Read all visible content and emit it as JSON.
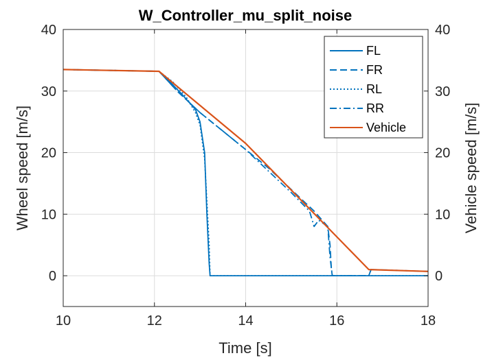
{
  "chart_data": {
    "type": "line",
    "title": "W_Controller_mu_split_noise",
    "xlabel": "Time [s]",
    "ylabel": "Wheel speed [m/s]",
    "ylabel_right": "Vehicle speed [m/s]",
    "xlim": [
      10,
      18
    ],
    "ylim": [
      -5,
      40
    ],
    "xticks": [
      10,
      12,
      14,
      16,
      18
    ],
    "yticks": [
      0,
      10,
      20,
      30,
      40
    ],
    "grid": true,
    "legend_position": "top-right",
    "series": [
      {
        "name": "FL",
        "color": "#0072BD",
        "style": "solid",
        "x": [
          10,
          12.1,
          12.3,
          12.6,
          12.9,
          13.0,
          13.1,
          13.15,
          13.2,
          13.22,
          18
        ],
        "y": [
          33.5,
          33.2,
          31.8,
          29.5,
          27.0,
          25.0,
          20.0,
          10.0,
          2.0,
          0,
          0
        ]
      },
      {
        "name": "FR",
        "color": "#0072BD",
        "style": "dashed",
        "x": [
          10,
          12.1,
          12.5,
          13.0,
          13.5,
          14.0,
          14.5,
          15.0,
          15.5,
          15.8,
          15.85,
          15.88,
          15.9,
          16.7,
          16.75,
          18
        ],
        "y": [
          33.5,
          33.2,
          30.0,
          26.5,
          23.5,
          20.5,
          17.5,
          14.0,
          10.5,
          8.0,
          5.0,
          1.0,
          0,
          0,
          1.0,
          0.7
        ]
      },
      {
        "name": "RL",
        "color": "#0072BD",
        "style": "dotted",
        "x": [
          10,
          12.1,
          12.4,
          12.7,
          12.9,
          13.0,
          13.1,
          13.2,
          13.22,
          18
        ],
        "y": [
          33.5,
          33.2,
          31.5,
          29.0,
          26.5,
          24.5,
          19.0,
          5.0,
          0,
          0
        ]
      },
      {
        "name": "RR",
        "color": "#0072BD",
        "style": "dashdot",
        "x": [
          10,
          12.1,
          12.5,
          13.0,
          13.5,
          14.0,
          14.5,
          15.0,
          15.4,
          15.5,
          15.6,
          15.8,
          15.85,
          15.9,
          16.7,
          16.75,
          18
        ],
        "y": [
          33.5,
          33.2,
          30.0,
          26.5,
          23.5,
          20.5,
          17.0,
          13.5,
          10.5,
          8.0,
          9.0,
          8.0,
          3.0,
          0,
          0,
          1.0,
          0.7
        ]
      },
      {
        "name": "Vehicle",
        "color": "#D95319",
        "style": "solid",
        "x": [
          10,
          12.1,
          14.0,
          16.7,
          18
        ],
        "y": [
          33.5,
          33.2,
          21.5,
          1.0,
          0.7
        ]
      }
    ]
  }
}
